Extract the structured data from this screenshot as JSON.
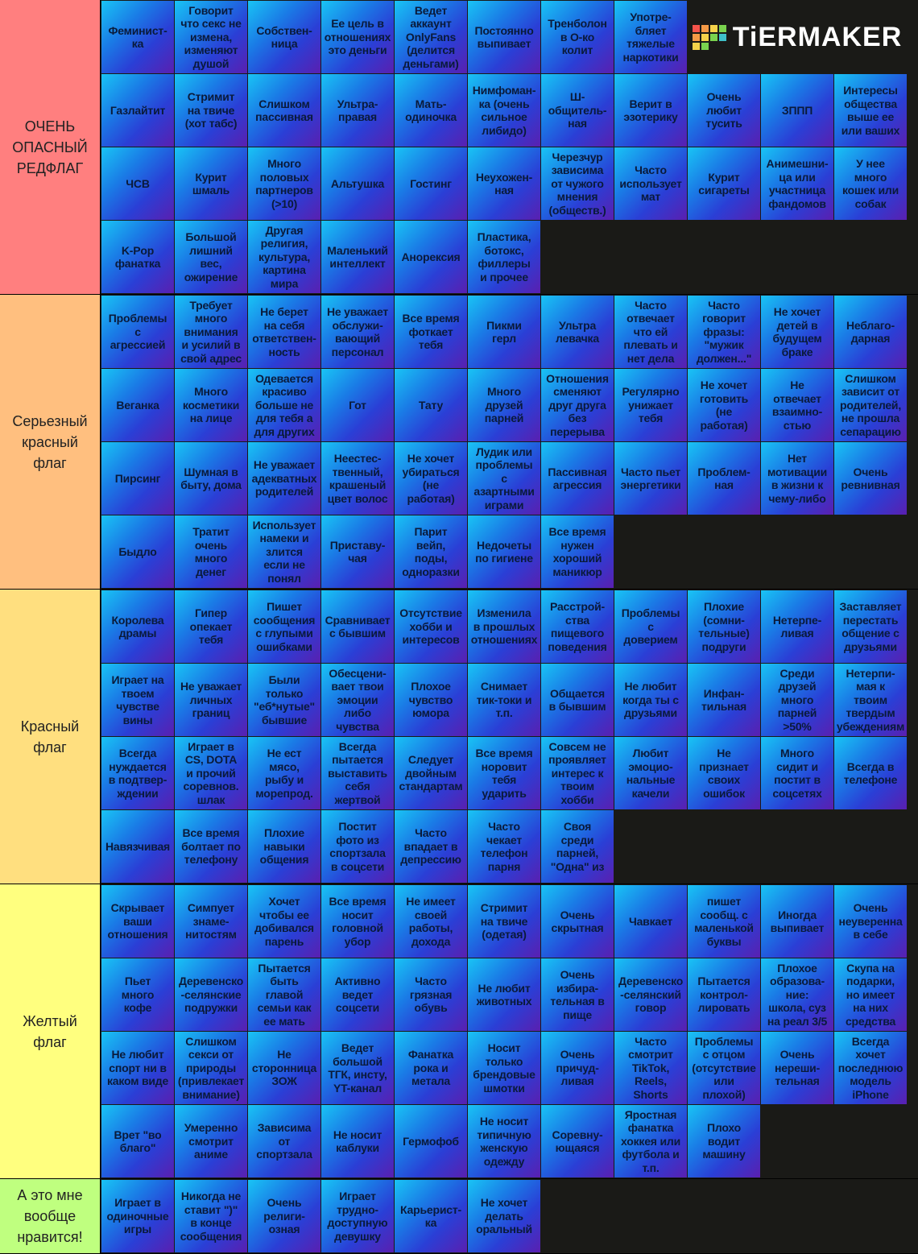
{
  "logo": "TiERMAKER",
  "tiers": [
    {
      "label": "ОЧЕНЬ\nОПАСНЫЙ\nРЕДФЛАГ",
      "color": "#ff7f7f",
      "items": [
        "Феминист-\nка",
        "Говорит\nчто секс не\nизмена,\nизменяют\nдушой",
        "Собствен-\nница",
        "Ее цель в\nотношениях\nэто деньги",
        "Ведет\nаккаунт\nOnlyFans\n(делится\nденьгами)",
        "Постоянно\nвыпивает",
        "Тренболон\nв О-ко\nколит",
        "Употре-\nбляет\nтяжелые\nнаркотики",
        "Газлайтит",
        "Стримит\nна твиче\n(хот табс)",
        "Слишком\nпассивная",
        "Ультра-\nправая",
        "Мать-\nодиночка",
        "Нимфоман-\nка (очень\nсильное\nлибидо)",
        "Ш-\nобщитель-\nная",
        "Верит в\nэзотерику",
        "Очень\nлюбит\nтусить",
        "ЗППП",
        "Интересы\nобщества\nвыше ее\nили ваших",
        "ЧСВ",
        "Курит\nшмаль",
        "Много\nполовых\nпартнеров\n(>10)",
        "Альтушка",
        "Гостинг",
        "Неухожен-\nная",
        "Черезчур\nзависима\nот чужого\nмнения\n(обществ.)",
        "Часто\nиспользует\nмат",
        "Курит\nсигареты",
        "Анимешни-\nца или\nучастница\nфандомов",
        "У нее\nмного\nкошек или\nсобак",
        "K-Pop\nфанатка",
        "Большой\nлишний\nвес,\nожирение",
        "Другая\nрелигия,\nкультура,\nкартина\nмира",
        "Маленький\nинтеллект",
        "Анорексия",
        "Пластика,\nботокс,\nфиллеры\nи прочее"
      ]
    },
    {
      "label": "Серьезный\nкрасный\nфлаг",
      "color": "#ffbf7f",
      "items": [
        "Проблемы\nс\nагрессией",
        "Требует\nмного\nвнимания\nи усилий в\nсвой адрес",
        "Не берет\nна себя\nответствен-\nность",
        "Не уважает\nобслужи-\nвающий\nперсонал",
        "Все время\nфоткает\nтебя",
        "Пикми\nгерл",
        "Ультра\nлевачка",
        "Часто\nотвечает\nчто ей\nплевать и\nнет дела",
        "Часто\nговорит\nфразы:\n\"мужик\nдолжен...\"",
        "Не хочет\nдетей в\nбудущем\nбраке",
        "Неблаго-\nдарная",
        "Веганка",
        "Много\nкосметики\nна лице",
        "Одевается\nкрасиво\nбольше не\nдля тебя а\nдля других",
        "Гот",
        "Тату",
        "Много\nдрузей\nпарней",
        "Отношения\nсменяют\nдруг друга\nбез\nперерыва",
        "Регулярно\nунижает\nтебя",
        "Не хочет\nготовить\n(не\nработая)",
        "Не\nотвечает\nвзаимно-\nстью",
        "Слишком\nзависит от\nродителей,\nне прошла\nсепарацию",
        "Пирсинг",
        "Шумная в\nбыту, дома",
        "Не уважает\nадекватных\nродителей",
        "Неестес-\nтвенный,\nкрашеный\nцвет волос",
        "Не хочет\nубираться\n(не\nработая)",
        "Лудик или\nпроблемы\nс\nазартными\nиграми",
        "Пассивная\nагрессия",
        "Часто пьет\nэнергетики",
        "Проблем-\nная",
        "Нет\nмотивации\nв жизни к\nчему-либо",
        "Очень\nревнивная",
        "Быдло",
        "Тратит\nочень\nмного\nденег",
        "Использует\nнамеки и\nзлится\nесли не\nпонял",
        "Приставу-\nчая",
        "Парит\nвейп,\nподы,\nодноразки",
        "Недочеты\nпо гигиене",
        "Все время\nнужен\nхороший\nманикюр"
      ]
    },
    {
      "label": "Красный\nфлаг",
      "color": "#ffdf7f",
      "items": [
        "Королева\nдрамы",
        "Гипер\nопекает\nтебя",
        "Пишет\nсообщения\nс глупыми\nошибками",
        "Сравнивает\nс бывшим",
        "Отсутствие\nхобби и\nинтересов",
        "Изменила\nв прошлых\nотношениях",
        "Расстрой-\nства\nпищевого\nповедения",
        "Проблемы\nс\nдоверием",
        "Плохие\n(сомни-\nтельные)\nподруги",
        "Нетерпе-\nливая",
        "Заставляет\nперестать\nобщение с\nдрузьями",
        "Играет на\nтвоем\nчувстве\nвины",
        "Не уважает\nличных\nграниц",
        "Были\nтолько\n\"еб*нутые\"\nбывшие",
        "Обесцени-\nвает твои\nэмоции\nлибо\nчувства",
        "Плохое\nчувство\nюмора",
        "Снимает\nтик-токи и\nт.п.",
        "Общается\nв бывшим",
        "Не любит\nкогда ты с\nдрузьями",
        "Инфан-\nтильная",
        "Среди\nдрузей\nмного\nпарней\n>50%",
        "Нетерпи-\nмая к\nтвоим\nтвердым\nубеждениям",
        "Всегда\nнуждается\nв подтвер-\nждении",
        "Играет в\nCS, DOTA\nи прочий\nсоревнов.\nшлак",
        "Не ест\nмясо,\nрыбу и\nморепрод.",
        "Всегда\nпытается\nвыставить\nсебя\nжертвой",
        "Следует\nдвойным\nстандартам",
        "Все время\nноровит\nтебя\nударить",
        "Совсем не\nпроявляет\nинтерес к\nтвоим\nхобби",
        "Любит\nэмоцио-\nнальные\nкачели",
        "Не\nпризнает\nсвоих\nошибок",
        "Много\nсидит и\nпостит в\nсоцсетях",
        "Всегда в\nтелефоне",
        "Навязчивая",
        "Все время\nболтает по\nтелефону",
        "Плохие\nнавыки\nобщения",
        "Постит\nфото из\nспортзала\nв соцсети",
        "Часто\nвпадает в\nдепрессию",
        "Часто\nчекает\nтелефон\nпарня",
        "Своя\nсреди\nпарней,\n\"Одна\" из"
      ]
    },
    {
      "label": "Желтый\nфлаг",
      "color": "#ffff7f",
      "items": [
        "Скрывает\nваши\nотношения",
        "Симпует\nзнаме-\nнитостям",
        "Хочет\nчтобы ее\nдобивался\nпарень",
        "Все время\nносит\nголовной\nубор",
        "Не имеет\nсвоей\nработы,\nдохода",
        "Стримит\nна твиче\n(одетая)",
        "Очень\nскрытная",
        "Чавкает",
        "пишет\nсообщ. с\nмаленькой\nбуквы",
        "Иногда\nвыпивает",
        "Очень\nнеуверенна\nв себе",
        "Пьет\nмного\nкофе",
        "Деревенско\n-селянские\nподружки",
        "Пытается\nбыть\nглавой\nсемьи как\nее мать",
        "Активно\nведет\nсоцсети",
        "Часто\nгрязная\nобувь",
        "Не любит\nживотных",
        "Очень\nизбира-\nтельная в\nпище",
        "Деревенско\n-селянский\nговор",
        "Пытается\nконтрол-\nлировать",
        "Плохое\nобразова-\nние:\nшкола, суз\nна реал 3/5",
        "Скупа на\nподарки,\nно имеет\nна них\nсредства",
        "Не любит\nспорт ни в\nкаком виде",
        "Слишком\nсекси от\nприроды\n(привлекает\nвнимание)",
        "Не\nсторонница\nЗОЖ",
        "Ведет\nбольшой\nТГК, инсту,\nYT-канал",
        "Фанатка\nрока и\nметала",
        "Носит\nтолько\nбрендовые\nшмотки",
        "Очень\nпричуд-\nливая",
        "Часто\nсмотрит\nTikTok,\nReels,\nShorts",
        "Проблемы\nс отцом\n(отсутствие\nили\nплохой)",
        "Очень\nнереши-\nтельная",
        "Всегда\nхочет\nпоследнюю\nмодель\niPhone",
        "Врет \"во\nблаго\"",
        "Умеренно\nсмотрит\nаниме",
        "Зависима\nот\nспортзала",
        "Не носит\nкаблуки",
        "Гермофоб",
        "Не носит\nтипичную\nженскую\nодежду",
        "Соревну-\nющаяся",
        "Яростная\nфанатка\nхоккея или\nфутбола и\nт.п.",
        "Плохо\nводит\nмашину"
      ]
    },
    {
      "label": "А это мне\nвообще\nнравится!",
      "color": "#bfff7f",
      "items": [
        "Играет в\nодиночные\nигры",
        "Никогда не\nставит \")\"\nв конце\nсообщения",
        "Очень\nрелиги-\nозная",
        "Играет\nтрудно-\nдоступную\nдевушку",
        "Карьерист-\nка",
        "Не хочет\nделать\nоральный"
      ]
    }
  ]
}
